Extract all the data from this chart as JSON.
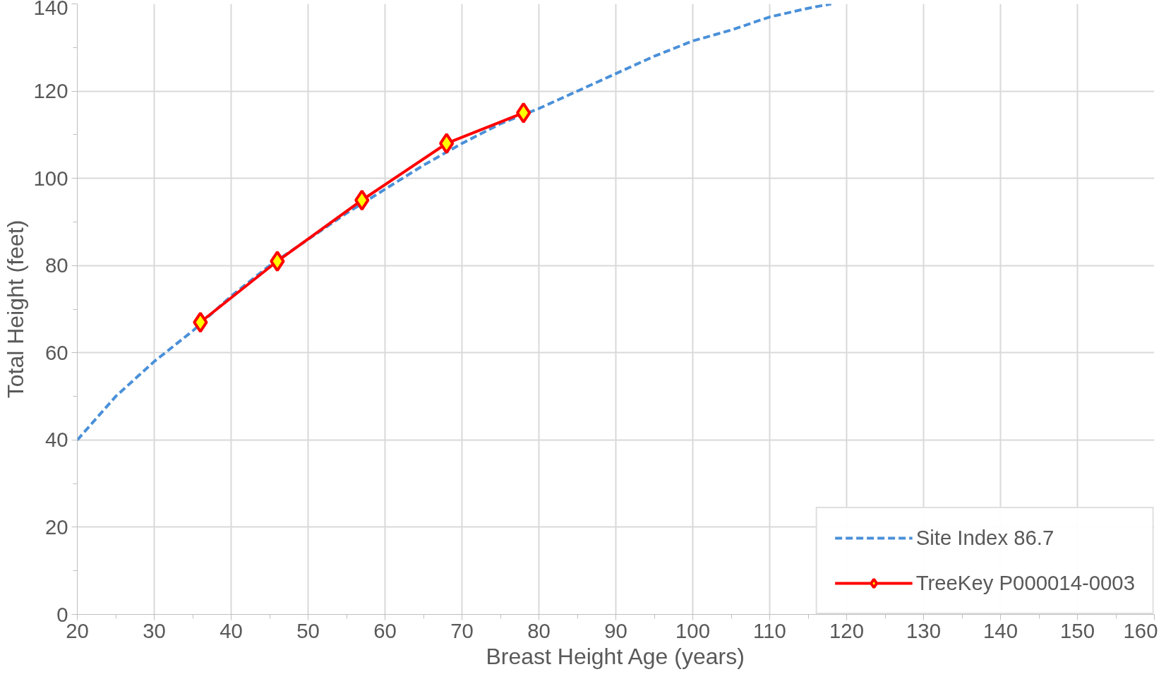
{
  "chart_data": {
    "type": "line",
    "xlabel": "Breast Height Age (years)",
    "ylabel": "Total Height (feet)",
    "series": [
      {
        "name": "Site Index 86.7",
        "color": "#4a90d9",
        "line_style": "dashed",
        "marker": "none",
        "x": [
          20,
          25,
          30,
          35,
          40,
          45,
          50,
          55,
          60,
          65,
          70,
          75,
          80,
          85,
          90,
          95,
          100,
          105,
          110,
          115,
          118
        ],
        "values": [
          40,
          50,
          58,
          65,
          73,
          80,
          86,
          92,
          97.5,
          103,
          108,
          112.5,
          116,
          120,
          124,
          128,
          131.5,
          134,
          137,
          139,
          140
        ]
      },
      {
        "name": "TreeKey P000014-0003",
        "color": "#ff0000",
        "line_style": "solid",
        "marker": "diamond",
        "x": [
          36,
          46,
          57,
          68,
          78
        ],
        "values": [
          67,
          81,
          95,
          108,
          115
        ]
      }
    ],
    "xlim": [
      20,
      160
    ],
    "xticks": [
      20,
      30,
      40,
      50,
      60,
      70,
      80,
      90,
      100,
      110,
      120,
      130,
      140,
      150,
      160
    ],
    "ylim": [
      0,
      140
    ],
    "yticks": [
      0,
      20,
      40,
      60,
      80,
      100,
      120,
      140
    ],
    "grid": true,
    "legend": "bottom right"
  }
}
